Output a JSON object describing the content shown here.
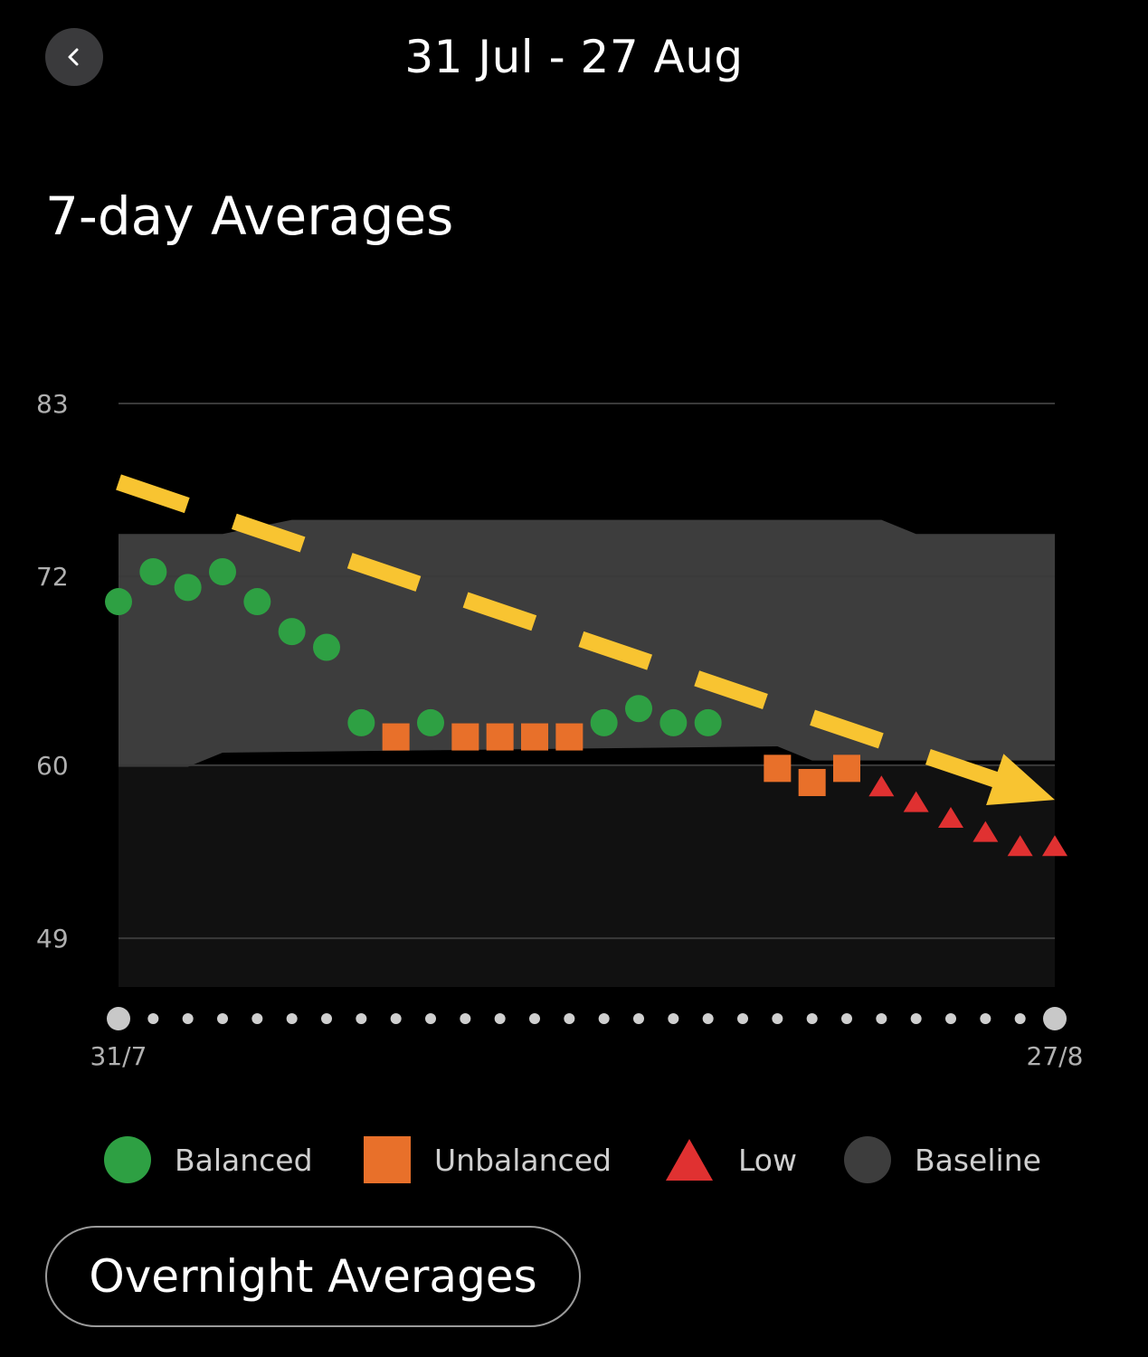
{
  "header": {
    "title": "31 Jul - 27 Aug",
    "back_icon": "chevron-left-icon"
  },
  "section_title": "7-day Averages",
  "chart_data": {
    "type": "scatter",
    "title": "",
    "xlabel": "",
    "ylabel": "",
    "ylim": [
      45.9,
      83
    ],
    "y_ticks": [
      "83",
      "72",
      "60",
      "49"
    ],
    "x_labels": [
      "31/7",
      "27/8"
    ],
    "day_count": 28,
    "points": [
      {
        "day": 0,
        "value": 70.4,
        "status": "Balanced"
      },
      {
        "day": 1,
        "value": 72.3,
        "status": "Balanced"
      },
      {
        "day": 2,
        "value": 71.3,
        "status": "Balanced"
      },
      {
        "day": 3,
        "value": 72.3,
        "status": "Balanced"
      },
      {
        "day": 4,
        "value": 70.4,
        "status": "Balanced"
      },
      {
        "day": 5,
        "value": 68.5,
        "status": "Balanced"
      },
      {
        "day": 6,
        "value": 67.5,
        "status": "Balanced"
      },
      {
        "day": 7,
        "value": 62.7,
        "status": "Balanced"
      },
      {
        "day": 8,
        "value": 61.8,
        "status": "Unbalanced"
      },
      {
        "day": 9,
        "value": 62.7,
        "status": "Balanced"
      },
      {
        "day": 10,
        "value": 61.8,
        "status": "Unbalanced"
      },
      {
        "day": 11,
        "value": 61.8,
        "status": "Unbalanced"
      },
      {
        "day": 12,
        "value": 61.8,
        "status": "Unbalanced"
      },
      {
        "day": 13,
        "value": 61.8,
        "status": "Unbalanced"
      },
      {
        "day": 14,
        "value": 62.7,
        "status": "Balanced"
      },
      {
        "day": 15,
        "value": 63.6,
        "status": "Balanced"
      },
      {
        "day": 16,
        "value": 62.7,
        "status": "Balanced"
      },
      {
        "day": 17,
        "value": 62.7,
        "status": "Balanced"
      },
      {
        "day": 19,
        "value": 59.8,
        "status": "Unbalanced"
      },
      {
        "day": 20,
        "value": 58.9,
        "status": "Unbalanced"
      },
      {
        "day": 21,
        "value": 59.8,
        "status": "Unbalanced"
      },
      {
        "day": 22,
        "value": 58.6,
        "status": "Low"
      },
      {
        "day": 23,
        "value": 57.6,
        "status": "Low"
      },
      {
        "day": 24,
        "value": 56.6,
        "status": "Low"
      },
      {
        "day": 25,
        "value": 55.7,
        "status": "Low"
      },
      {
        "day": 26,
        "value": 54.8,
        "status": "Low"
      },
      {
        "day": 27,
        "value": 54.8,
        "status": "Low"
      }
    ],
    "baseline": {
      "upper": [
        [
          0,
          74.7
        ],
        [
          3,
          74.7
        ],
        [
          5,
          75.6
        ],
        [
          22,
          75.6
        ],
        [
          23,
          74.7
        ],
        [
          27,
          74.7
        ]
      ],
      "lower": [
        [
          0,
          59.9
        ],
        [
          2,
          59.9
        ],
        [
          3,
          60.8
        ],
        [
          19,
          61.2
        ],
        [
          20,
          60.3
        ],
        [
          27,
          60.3
        ]
      ]
    },
    "trend": {
      "from": [
        0,
        78.0
      ],
      "to": [
        27,
        57.8
      ]
    },
    "colors": {
      "Balanced": "#2ea043",
      "Unbalanced": "#e8702a",
      "Low": "#e03131",
      "Baseline": "#3d3d3d",
      "trend": "#f8c431",
      "plot_bg": "#111111",
      "grid": "#3a3a3a"
    },
    "legend": [
      {
        "label": "Balanced",
        "shape": "circle"
      },
      {
        "label": "Unbalanced",
        "shape": "square"
      },
      {
        "label": "Low",
        "shape": "triangle"
      },
      {
        "label": "Baseline",
        "shape": "circle"
      }
    ]
  },
  "button": {
    "label": "Overnight Averages"
  }
}
